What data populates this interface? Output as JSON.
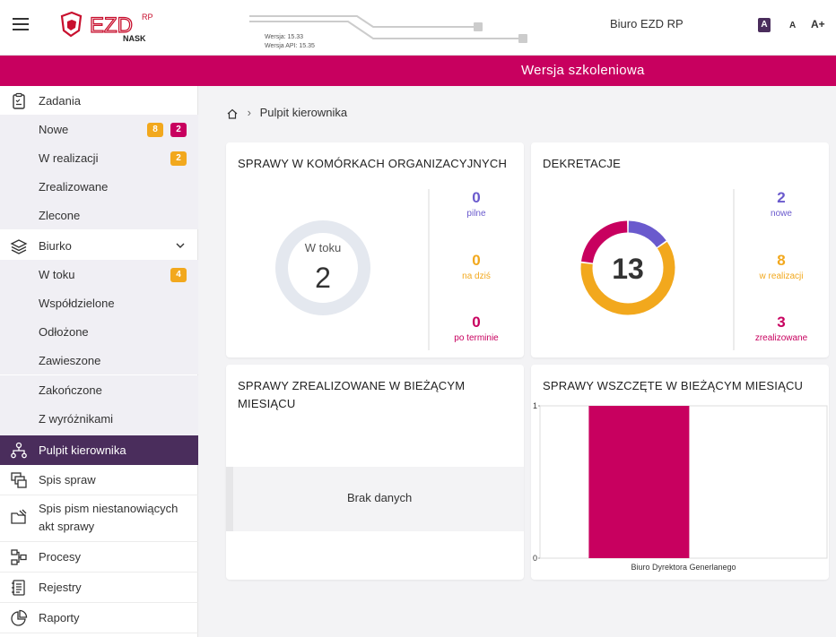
{
  "header": {
    "version": "Wersja: 15.33",
    "api_version": "Wersja API: 15.35",
    "office": "Biuro EZD RP",
    "font_small": "A",
    "font_medium": "A",
    "font_large": "A+",
    "logo_text": "EZD",
    "logo_sup": "RP",
    "logo_sub": "NASK"
  },
  "banner": {
    "label": "Wersja szkoleniowa"
  },
  "sidebar": {
    "zadania": {
      "label": "Zadania",
      "items": [
        {
          "label": "Nowe",
          "badges": [
            "8",
            "2"
          ]
        },
        {
          "label": "W realizacji",
          "badges": [
            "2"
          ]
        },
        {
          "label": "Zrealizowane"
        },
        {
          "label": "Zlecone"
        }
      ]
    },
    "biurko": {
      "label": "Biurko",
      "items": [
        {
          "label": "W toku",
          "badges": [
            "4"
          ]
        },
        {
          "label": "Współdzielone"
        },
        {
          "label": "Odłożone"
        },
        {
          "label": "Zawieszone"
        },
        {
          "label": "Zakończone"
        },
        {
          "label": "Z wyróżnikami"
        }
      ]
    },
    "pulpit": "Pulpit kierownika",
    "spis_spraw": "Spis spraw",
    "spis_pism_1": "Spis pism niestanowiących",
    "spis_pism_2": "akt sprawy",
    "procesy": "Procesy",
    "rejestry": "Rejestry",
    "raporty": "Raporty"
  },
  "breadcrumb": {
    "current": "Pulpit kierownika"
  },
  "cards": {
    "komorki": {
      "title": "Sprawy w komórkach organizacyjnych",
      "center_label": "W toku",
      "center_value": "2",
      "stats": [
        {
          "value": "0",
          "label": "pilne"
        },
        {
          "value": "0",
          "label": "na dziś"
        },
        {
          "value": "0",
          "label": "po terminie"
        }
      ]
    },
    "dekretacje": {
      "title": "Dekretacje",
      "center_value": "13",
      "stats": [
        {
          "value": "2",
          "label": "nowe"
        },
        {
          "value": "8",
          "label": "w realizacji"
        },
        {
          "value": "3",
          "label": "zrealizowane"
        }
      ],
      "segments": [
        {
          "value": 2,
          "color": "#6a5acd"
        },
        {
          "value": 8,
          "color": "#f2a81d"
        },
        {
          "value": 3,
          "color": "#c8005f"
        }
      ]
    },
    "zrealizowane": {
      "title_1": "Sprawy zrealizowane w bieżącym",
      "title_2": "miesiącu",
      "empty": "Brak danych"
    },
    "wszczete": {
      "title": "Sprawy wszczęte w bieżącym miesiącu"
    }
  },
  "chart_data": {
    "type": "bar",
    "categories": [
      "Biuro Dyrektora Generlanego"
    ],
    "values": [
      1
    ],
    "ylim": [
      0,
      1
    ],
    "yticks": [
      "0",
      "1"
    ],
    "colors": [
      "#c8005f"
    ]
  }
}
